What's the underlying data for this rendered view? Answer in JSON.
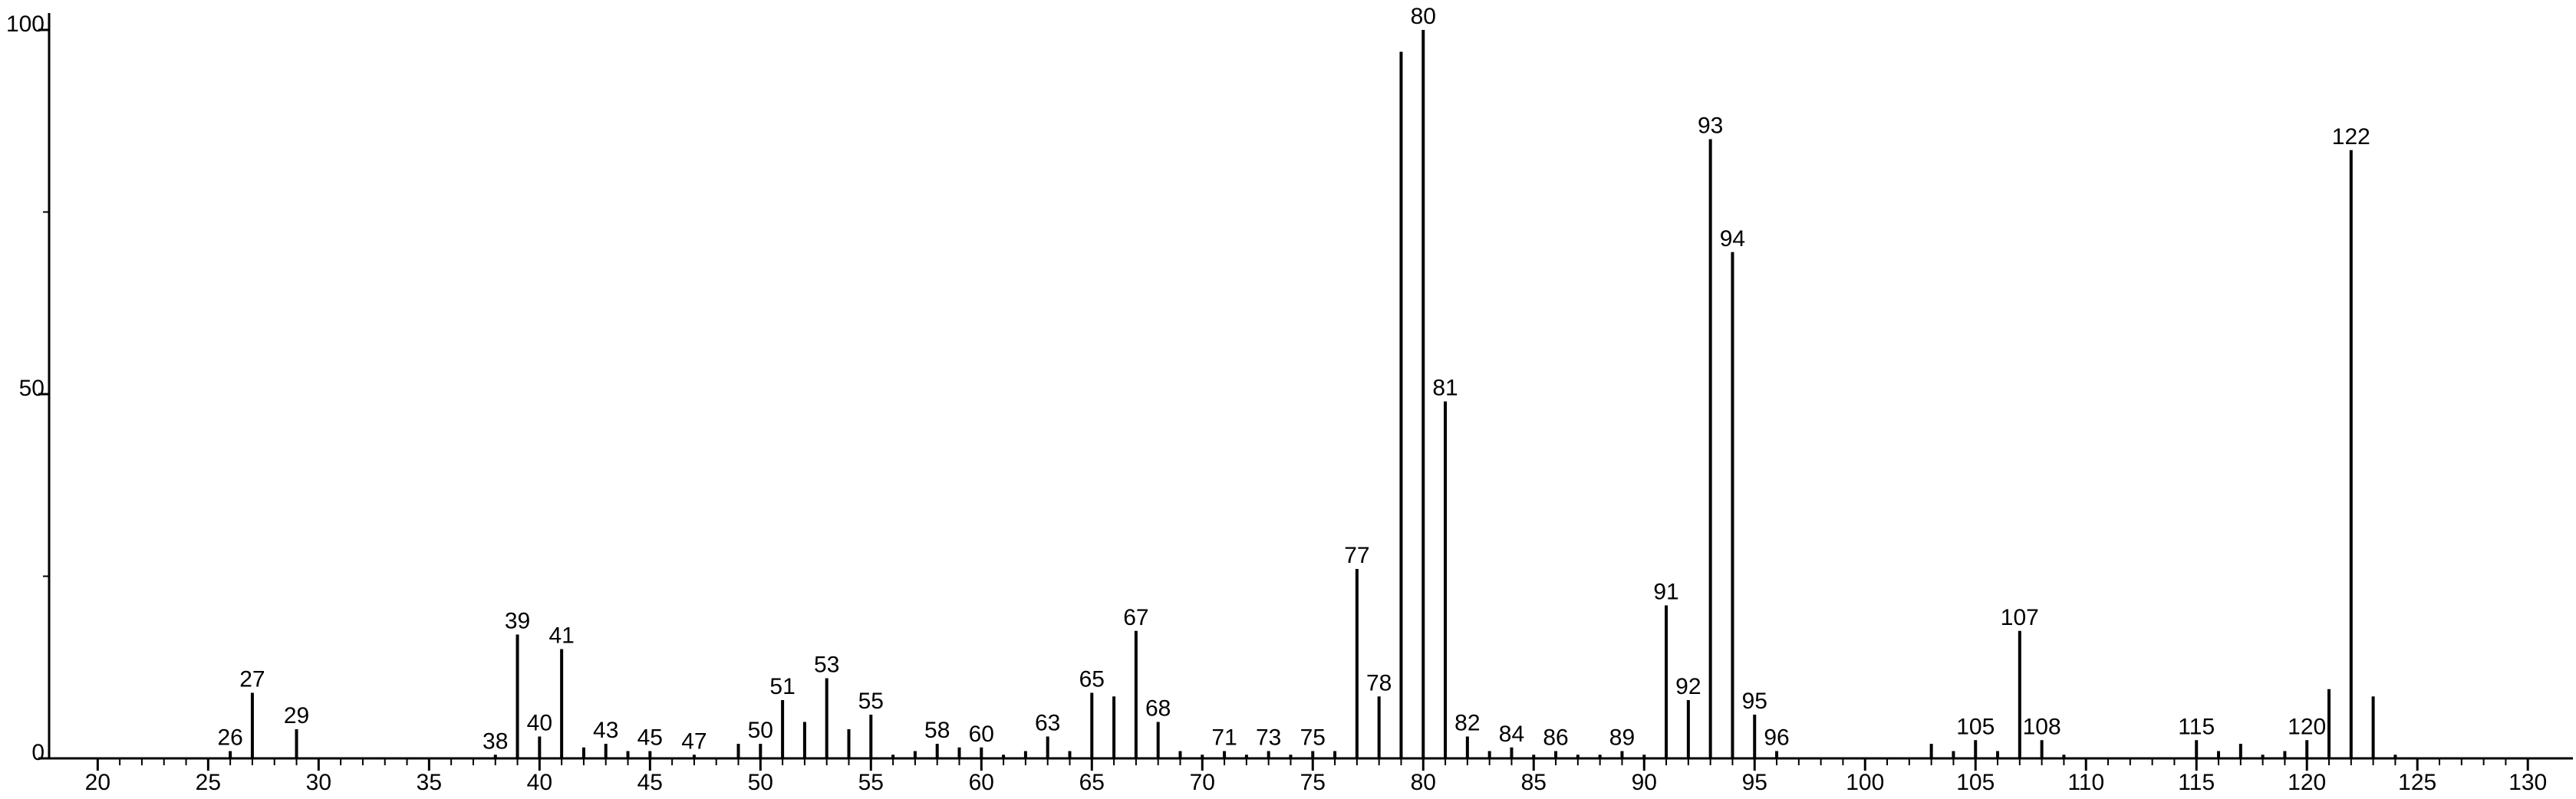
{
  "chart_data": {
    "type": "stem",
    "x": [
      26,
      27,
      29,
      38,
      39,
      40,
      41,
      42,
      43,
      44,
      45,
      47,
      49,
      50,
      51,
      52,
      53,
      54,
      55,
      56,
      57,
      58,
      59,
      60,
      61,
      62,
      63,
      64,
      65,
      66,
      67,
      68,
      69,
      70,
      71,
      72,
      73,
      74,
      75,
      76,
      77,
      78,
      79,
      80,
      81,
      82,
      83,
      84,
      85,
      86,
      87,
      88,
      89,
      90,
      91,
      92,
      93,
      94,
      95,
      96,
      103,
      104,
      105,
      106,
      107,
      108,
      109,
      115,
      116,
      117,
      118,
      119,
      120,
      121,
      122,
      123,
      124
    ],
    "values": [
      1,
      9,
      4,
      0.5,
      17,
      3,
      15,
      1.5,
      2,
      1,
      1,
      0.5,
      2,
      2,
      8,
      5,
      11,
      4,
      6,
      0.5,
      1,
      2,
      1.5,
      1.5,
      0.5,
      1,
      3,
      1,
      9,
      8.5,
      17.5,
      5,
      1,
      0.5,
      1,
      0.5,
      1,
      0.5,
      1,
      1,
      26,
      8.5,
      97,
      100,
      49,
      3,
      1,
      1.5,
      0.5,
      1,
      0.5,
      0.5,
      1,
      0.5,
      21,
      8,
      85,
      69.5,
      6,
      1,
      2,
      1,
      2.5,
      1,
      17.5,
      2.5,
      0.5,
      2.5,
      1,
      2,
      0.5,
      1,
      2.5,
      9.5,
      83.5,
      8.5,
      0.5
    ],
    "peak_labels": [
      26,
      27,
      29,
      38,
      39,
      40,
      41,
      43,
      45,
      47,
      50,
      51,
      53,
      55,
      58,
      60,
      63,
      65,
      67,
      68,
      71,
      73,
      75,
      77,
      78,
      80,
      81,
      82,
      84,
      86,
      89,
      91,
      92,
      93,
      94,
      95,
      96,
      105,
      107,
      108,
      115,
      120,
      122
    ],
    "color": "#000000",
    "xlim": [
      17.8,
      131
    ],
    "ylim": [
      0,
      100
    ],
    "xticks": [
      20,
      25,
      30,
      35,
      40,
      45,
      50,
      55,
      60,
      65,
      70,
      75,
      80,
      85,
      90,
      95,
      100,
      105,
      110,
      115,
      120,
      125,
      130
    ],
    "yticks": [
      0,
      50,
      100
    ],
    "minor_ticks": {
      "x": 5,
      "y": 2
    }
  }
}
